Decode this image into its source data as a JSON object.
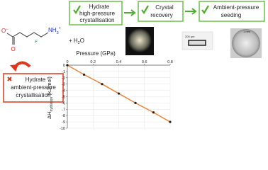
{
  "steps": [
    {
      "lines": [
        "Hydrate",
        "high-pressure",
        "crystallisation"
      ]
    },
    {
      "lines": [
        "Crystal",
        "recovery"
      ]
    },
    {
      "lines": [
        "Ambient-pressure",
        "seeding"
      ]
    }
  ],
  "failed_step": {
    "lines": [
      "Hydrate",
      "ambient-pressure",
      "crystallisation"
    ]
  },
  "photo_scales": [
    "200 µm",
    "1 mm"
  ],
  "molecule": {
    "o_minus": "O",
    "charge": "−",
    "o": "O",
    "f": "F",
    "nh": "NH",
    "nh_sub": "3",
    "nh_sup": "+"
  },
  "water": {
    "plus": "+ H",
    "sub": "2",
    "o": "O"
  },
  "chart_data": {
    "type": "line",
    "x_label": "Pressure (GPa)",
    "y_label": {
      "main": "ΔH",
      "sub": "hydration",
      "unit": " (kJ/mol)"
    },
    "x": [
      0,
      0.13,
      0.27,
      0.4,
      0.53,
      0.67,
      0.8
    ],
    "series": [
      {
        "name": "ΔH",
        "color": "#e8853a",
        "values": [
          0,
          -1.5,
          -3,
          -4.5,
          -6,
          -7.5,
          -9
        ]
      }
    ],
    "xlim": [
      0,
      0.8
    ],
    "ylim": [
      -10,
      0
    ],
    "xticks": [
      0,
      0.2,
      0.4,
      0.6,
      0.8
    ],
    "yticks": [
      0,
      -1,
      -2,
      -3,
      -4,
      -5,
      -6,
      -7,
      -8,
      -9,
      -10
    ],
    "grid": true
  }
}
